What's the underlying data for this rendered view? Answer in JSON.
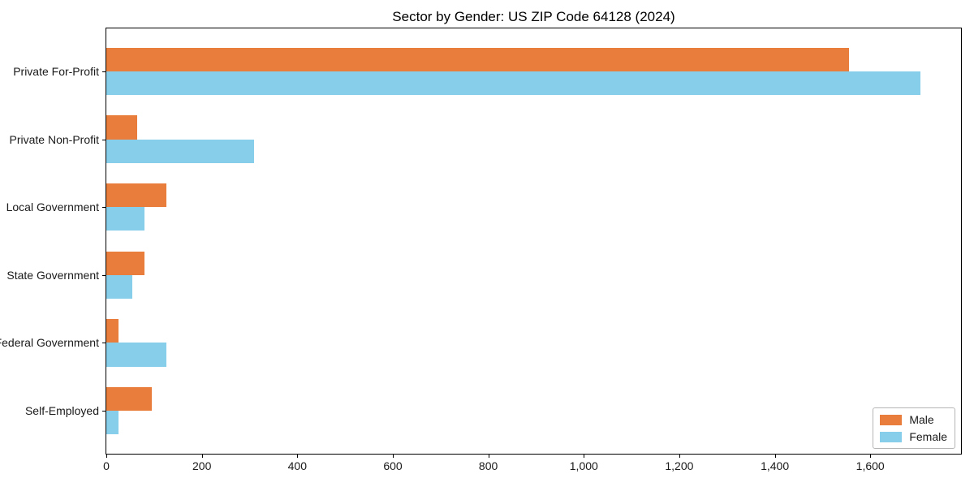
{
  "figure": {
    "background": "#ffffff"
  },
  "chart_data": {
    "type": "bar",
    "orientation": "horizontal",
    "title": "Sector by Gender: US ZIP Code 64128 (2024)",
    "categories": [
      "Private For-Profit",
      "Private Non-Profit",
      "Local Government",
      "State Government",
      "Federal Government",
      "Self-Employed"
    ],
    "series": [
      {
        "name": "Male",
        "color": "#e87d3c",
        "values": [
          1555,
          65,
          125,
          80,
          25,
          95
        ]
      },
      {
        "name": "Female",
        "color": "#87ceeb",
        "values": [
          1705,
          310,
          80,
          55,
          125,
          25
        ]
      }
    ],
    "xlabel": "",
    "ylabel": "",
    "xlim": [
      0,
      1790
    ],
    "xticks": {
      "values": [
        0,
        200,
        400,
        600,
        800,
        1000,
        1200,
        1400,
        1600
      ],
      "labels": [
        "0",
        "200",
        "400",
        "600",
        "800",
        "1,000",
        "1,200",
        "1,400",
        "1,600"
      ]
    },
    "grid": false,
    "legend_position": "lower right",
    "bar_height": 0.35
  }
}
